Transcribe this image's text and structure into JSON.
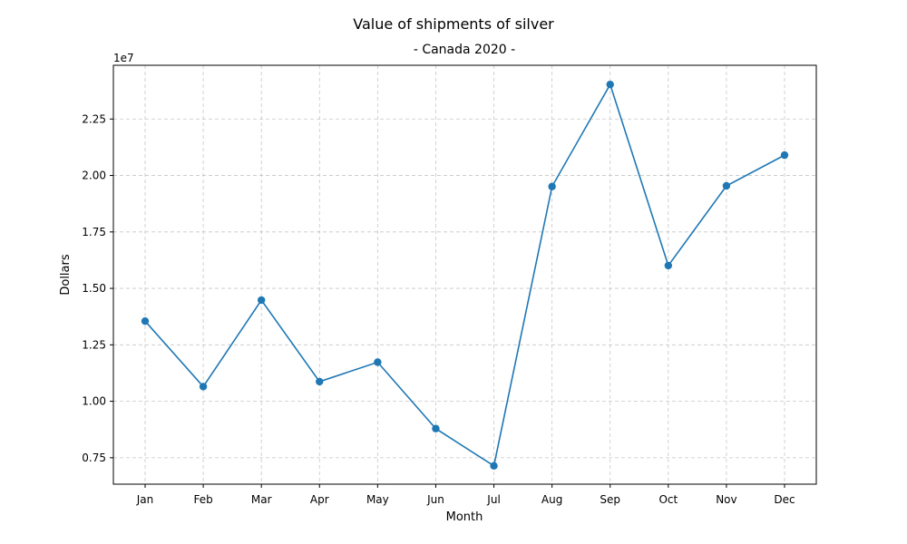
{
  "chart_data": {
    "type": "line",
    "title": "Value of shipments of silver",
    "subtitle": "- Canada 2020 -",
    "xlabel": "Month",
    "ylabel": "Dollars",
    "y_multiplier_label": "1e7",
    "categories": [
      "Jan",
      "Feb",
      "Mar",
      "Apr",
      "May",
      "Jun",
      "Jul",
      "Aug",
      "Sep",
      "Oct",
      "Nov",
      "Dec"
    ],
    "series": [
      {
        "values": [
          13550000,
          10650000,
          14480000,
          10870000,
          11730000,
          8790000,
          7140000,
          19510000,
          24030000,
          16010000,
          19540000,
          20900000
        ]
      }
    ],
    "y_ticks": [
      7500000,
      10000000,
      12500000,
      15000000,
      17500000,
      20000000,
      22500000
    ],
    "y_tick_labels": [
      "0.75",
      "1.00",
      "1.25",
      "1.50",
      "1.75",
      "2.00",
      "2.25"
    ],
    "ylim": [
      6330000,
      24880000
    ],
    "grid": true,
    "line_color": "#1f77b4",
    "marker": "circle"
  }
}
